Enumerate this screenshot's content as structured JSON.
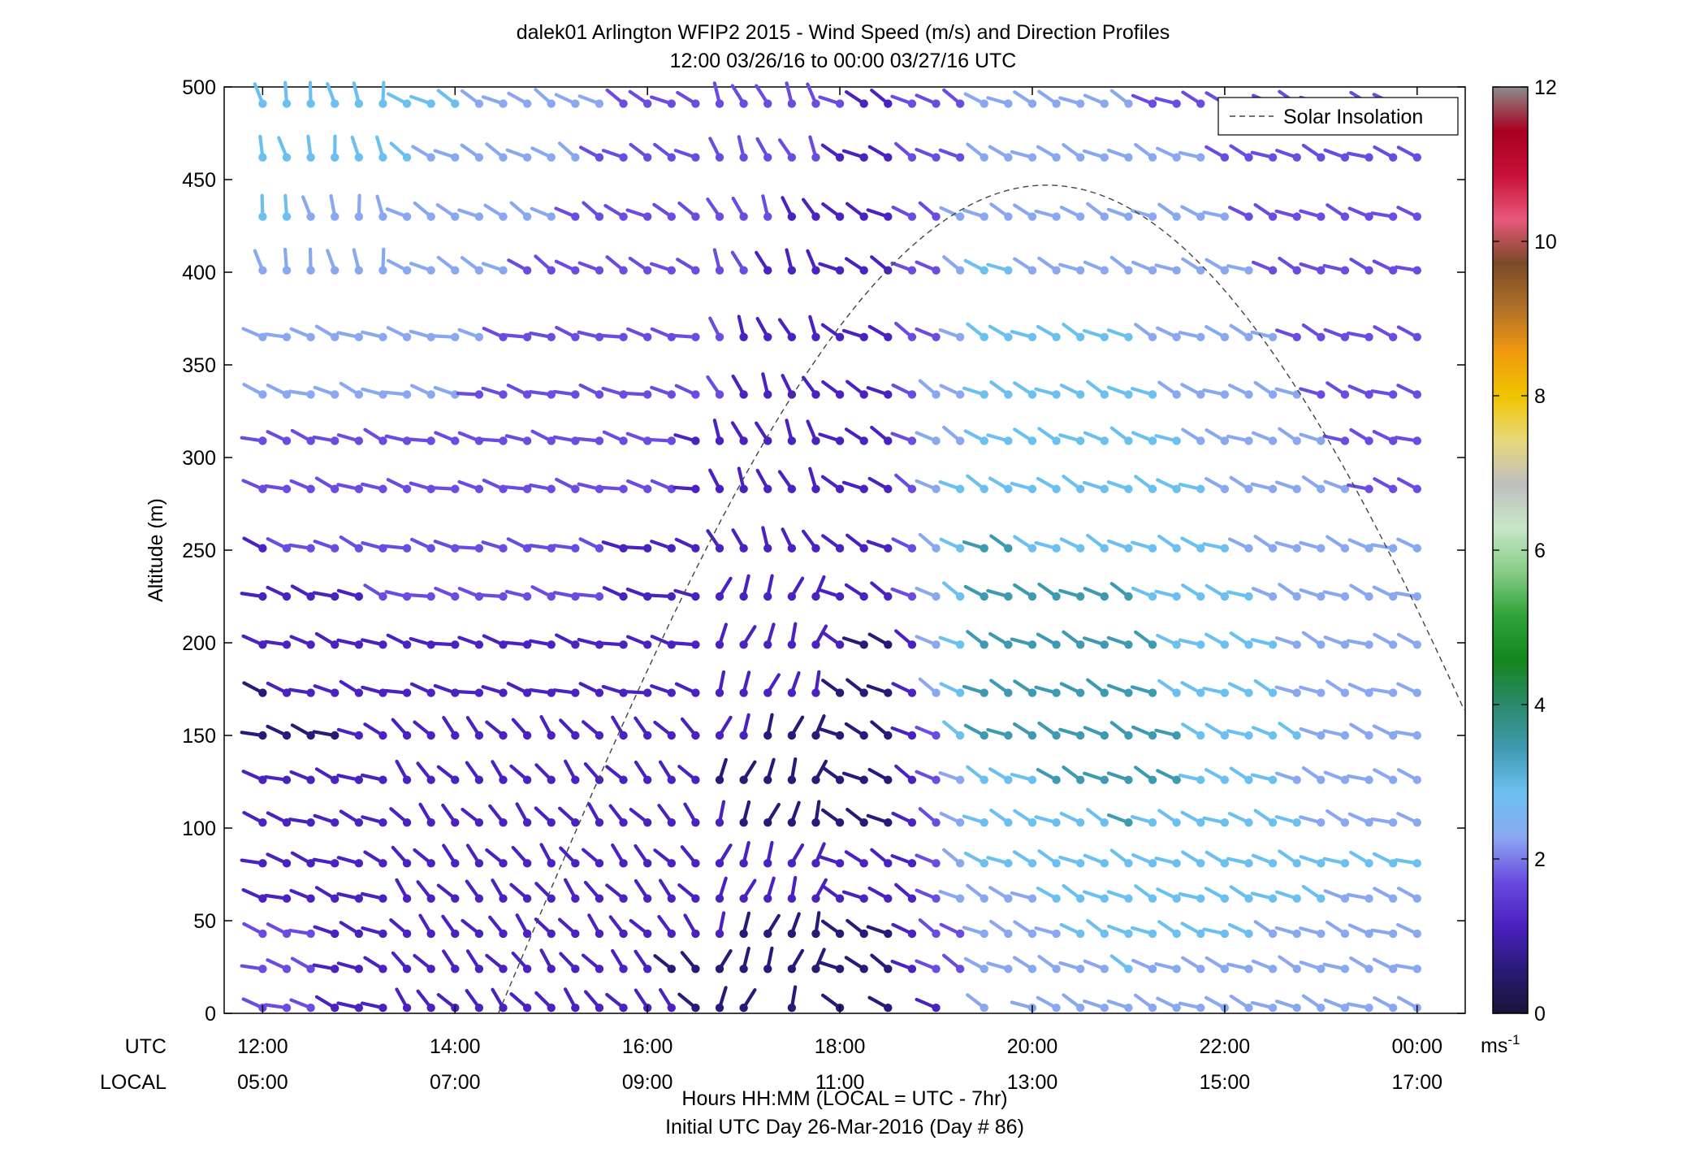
{
  "chart_data": {
    "type": "scatter",
    "subtype": "wind-barb-profile",
    "title": "dalek01 Arlington WFIP2 2015 - Wind Speed (m/s) and Direction Profiles",
    "subtitle": "12:00 03/26/16 to 00:00 03/27/16  UTC",
    "ylabel": "Altitude (m)",
    "xlabel": "Hours HH:MM  (LOCAL = UTC - 7hr)",
    "xlabel2": "Initial UTC Day 26-Mar-2016 (Day # 86)",
    "ylim": [
      0,
      500
    ],
    "yticks": [
      "0",
      "50",
      "100",
      "150",
      "200",
      "250",
      "300",
      "350",
      "400",
      "450",
      "500"
    ],
    "xlim_hours_utc": [
      11.6,
      24.5
    ],
    "xticks_utc": [
      "12:00",
      "14:00",
      "16:00",
      "18:00",
      "20:00",
      "22:00",
      "00:00"
    ],
    "xticks_local": [
      "05:00",
      "07:00",
      "09:00",
      "11:00",
      "13:00",
      "15:00",
      "17:00"
    ],
    "row_label_utc": "UTC",
    "row_label_local": "LOCAL",
    "legend": {
      "entries": [
        "Solar Insolation"
      ],
      "placement": "top-right"
    },
    "colorbar": {
      "range": [
        0,
        12
      ],
      "ticks": [
        "0",
        "2",
        "4",
        "6",
        "8",
        "10",
        "12"
      ],
      "unit_base": "ms",
      "unit_exp": "-1"
    },
    "time_step_minutes": 15,
    "altitudes_m": [
      3,
      24,
      43,
      62,
      81,
      103,
      126,
      150,
      173,
      199,
      225,
      251,
      283,
      309,
      334,
      365,
      401,
      430,
      462,
      491
    ],
    "speed_profiles_ms": [
      [
        1.5,
        1.5,
        1.5,
        1.0,
        1.0,
        1.2,
        1.0,
        0.6,
        0.8,
        1.1,
        1.2,
        1.4,
        1.6,
        1.8,
        2.0,
        2.2,
        2.4,
        2.6,
        2.8,
        3.0
      ],
      [
        1.3,
        1.3,
        1.3,
        1.3,
        1.3,
        1.3,
        1.2,
        1.1,
        1.2,
        1.4,
        1.5,
        1.6,
        1.7,
        1.9,
        2.1,
        2.3,
        2.4,
        2.5,
        2.6,
        2.8
      ],
      [
        1.2,
        1.1,
        1.0,
        1.1,
        1.3,
        1.2,
        1.1,
        1.2,
        1.3,
        1.4,
        1.5,
        1.5,
        1.6,
        1.7,
        1.8,
        1.8,
        1.9,
        2.0,
        2.1,
        2.2
      ],
      [
        0.8,
        0.8,
        0.9,
        1.0,
        1.1,
        1.0,
        0.9,
        1.0,
        1.1,
        1.2,
        1.3,
        1.3,
        1.4,
        1.4,
        1.5,
        1.5,
        1.5,
        1.6,
        1.6,
        1.7
      ],
      [
        0.5,
        0.6,
        0.8,
        0.9,
        0.9,
        0.6,
        0.7,
        0.8,
        0.9,
        1.0,
        1.1,
        1.1,
        1.2,
        1.2,
        1.3,
        1.3,
        1.4,
        1.4,
        1.5,
        1.5
      ],
      [
        0.6,
        0.7,
        0.8,
        0.9,
        1.0,
        0.8,
        0.7,
        0.7,
        0.8,
        0.8,
        0.9,
        0.9,
        1.0,
        1.0,
        1.1,
        1.1,
        1.2,
        1.2,
        1.3,
        1.4
      ],
      [
        2.0,
        2.2,
        2.3,
        2.4,
        2.6,
        2.7,
        3.0,
        3.2,
        3.2,
        3.3,
        3.2,
        3.2,
        3.1,
        3.0,
        2.9,
        2.8,
        2.6,
        2.4,
        2.2,
        2.0
      ],
      [
        2.4,
        2.6,
        2.8,
        2.9,
        3.1,
        3.2,
        3.4,
        3.5,
        3.3,
        3.3,
        3.2,
        3.0,
        2.9,
        2.8,
        2.7,
        2.6,
        2.5,
        2.3,
        2.2,
        2.0
      ],
      [
        2.2,
        2.3,
        2.4,
        2.5,
        2.6,
        2.4,
        2.2,
        2.3,
        2.2,
        2.1,
        2.0,
        2.0,
        1.9,
        1.8,
        1.8,
        1.7,
        1.6,
        1.6,
        1.6,
        1.5
      ]
    ],
    "profile_times_utc": [
      "12:00",
      "13:30",
      "15:00",
      "16:30",
      "17:30",
      "18:30",
      "19:30",
      "21:00",
      "23:30"
    ],
    "solar_insolation": {
      "shape": "half-sine",
      "start_utc_hours": 14.45,
      "peak_utc_hours": 20.15,
      "end_utc_hours": 25.85,
      "peak_altitude_equivalent_m": 447
    }
  },
  "colors": {
    "colormap_stops": [
      "#1a1438",
      "#2a1a78",
      "#4a22c0",
      "#6a4ce0",
      "#8aa8f0",
      "#6cc0f0",
      "#3e9ab0",
      "#2a8a6a",
      "#13861c",
      "#2fa238",
      "#86cc86",
      "#c8e6c8",
      "#bfbfbf",
      "#e8d878",
      "#f0c400",
      "#f09a10",
      "#b07028",
      "#7a4a28",
      "#e8587a",
      "#c81038",
      "#a80020",
      "#8c8c8c"
    ],
    "solar_line": "#444444",
    "axis": "#000000"
  }
}
